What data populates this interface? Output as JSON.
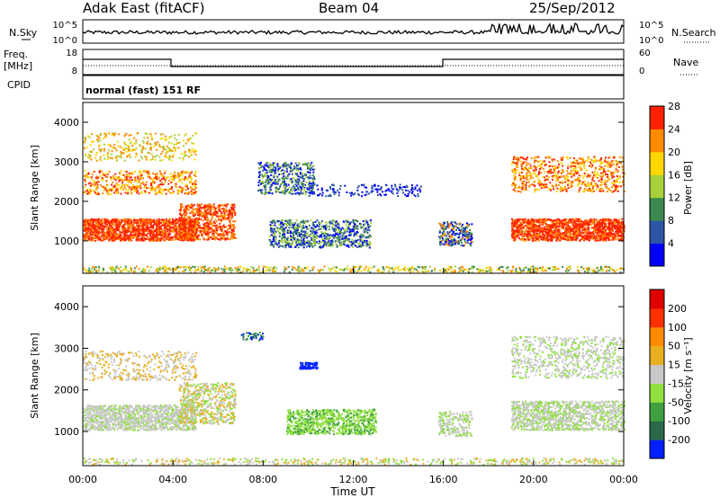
{
  "header": {
    "title_left": "Adak East (fitACF)",
    "title_center": "Beam 04",
    "title_right": "25/Sep/2012"
  },
  "top_panel": {
    "left_label": "N.Sky",
    "right_label": "N.Search",
    "left_ticks": [
      "10^5",
      "10^0"
    ],
    "right_ticks": [
      "10^5",
      "10^0"
    ]
  },
  "freq_panel": {
    "left_label_1": "Freq.",
    "left_label_2": "[MHz]",
    "cpid_label": "CPID",
    "right_label": "Nave",
    "left_ticks": [
      "18",
      "8"
    ],
    "right_ticks": [
      "60",
      "0"
    ],
    "mode_text": "normal (fast) 151 RF"
  },
  "time_axis": {
    "label": "Time UT",
    "ticks": [
      "00:00",
      "04:00",
      "08:00",
      "12:00",
      "16:00",
      "20:00",
      "00:00"
    ]
  },
  "chart_data": [
    {
      "type": "heatmap",
      "name": "power",
      "xlabel": "Time UT",
      "ylabel": "Slant Range [km]",
      "xlim": [
        0,
        24
      ],
      "ylim": [
        180,
        4500
      ],
      "yticks": [
        "1000",
        "2000",
        "3000",
        "4000"
      ],
      "colorbar": {
        "label": "Power [dB]",
        "ticks": [
          "4",
          "8",
          "12",
          "16",
          "20",
          "24",
          "28"
        ],
        "colors": [
          "#0000ff",
          "#2d55a5",
          "#3c8a50",
          "#a8d038",
          "#ffd700",
          "#ff8c00",
          "#ff2000"
        ]
      }
    },
    {
      "type": "heatmap",
      "name": "velocity",
      "xlabel": "Time UT",
      "ylabel": "Slant Range [km]",
      "xlim": [
        0,
        24
      ],
      "ylim": [
        180,
        4500
      ],
      "yticks": [
        "1000",
        "2000",
        "3000",
        "4000"
      ],
      "colorbar": {
        "label": "Velocity [m s⁻¹]",
        "ticks": [
          "200",
          "100",
          "50",
          "15",
          "-15",
          "-50",
          "-100",
          "-200"
        ],
        "colors": [
          "#0020ff",
          "#2a6a4a",
          "#40a040",
          "#90e040",
          "#c8c8c8",
          "#e8b020",
          "#ff8c00",
          "#ff3000",
          "#e00000"
        ]
      }
    }
  ]
}
